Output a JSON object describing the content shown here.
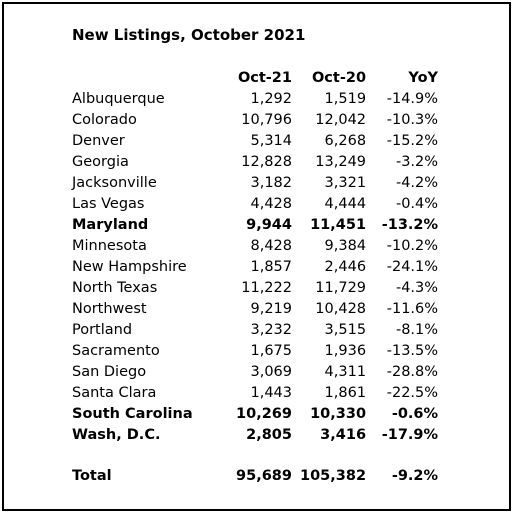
{
  "title": "New Listings, October 2021",
  "columns": {
    "region": "",
    "oct21": "Oct-21",
    "oct20": "Oct-20",
    "yoy": "YoY"
  },
  "rows": [
    {
      "region": "Albuquerque",
      "oct21": "1,292",
      "oct20": "1,519",
      "yoy": "-14.9%",
      "bold": false
    },
    {
      "region": "Colorado",
      "oct21": "10,796",
      "oct20": "12,042",
      "yoy": "-10.3%",
      "bold": false
    },
    {
      "region": "Denver",
      "oct21": "5,314",
      "oct20": "6,268",
      "yoy": "-15.2%",
      "bold": false
    },
    {
      "region": "Georgia",
      "oct21": "12,828",
      "oct20": "13,249",
      "yoy": "-3.2%",
      "bold": false
    },
    {
      "region": "Jacksonville",
      "oct21": "3,182",
      "oct20": "3,321",
      "yoy": "-4.2%",
      "bold": false
    },
    {
      "region": "Las Vegas",
      "oct21": "4,428",
      "oct20": "4,444",
      "yoy": "-0.4%",
      "bold": false
    },
    {
      "region": "Maryland",
      "oct21": "9,944",
      "oct20": "11,451",
      "yoy": "-13.2%",
      "bold": true
    },
    {
      "region": "Minnesota",
      "oct21": "8,428",
      "oct20": "9,384",
      "yoy": "-10.2%",
      "bold": false
    },
    {
      "region": "New Hampshire",
      "oct21": "1,857",
      "oct20": "2,446",
      "yoy": "-24.1%",
      "bold": false
    },
    {
      "region": "North Texas",
      "oct21": "11,222",
      "oct20": "11,729",
      "yoy": "-4.3%",
      "bold": false
    },
    {
      "region": "Northwest",
      "oct21": "9,219",
      "oct20": "10,428",
      "yoy": "-11.6%",
      "bold": false
    },
    {
      "region": "Portland",
      "oct21": "3,232",
      "oct20": "3,515",
      "yoy": "-8.1%",
      "bold": false
    },
    {
      "region": "Sacramento",
      "oct21": "1,675",
      "oct20": "1,936",
      "yoy": "-13.5%",
      "bold": false
    },
    {
      "region": "San Diego",
      "oct21": "3,069",
      "oct20": "4,311",
      "yoy": "-28.8%",
      "bold": false
    },
    {
      "region": "Santa Clara",
      "oct21": "1,443",
      "oct20": "1,861",
      "yoy": "-22.5%",
      "bold": false
    },
    {
      "region": "South Carolina",
      "oct21": "10,269",
      "oct20": "10,330",
      "yoy": "-0.6%",
      "bold": true
    },
    {
      "region": "Wash, D.C.",
      "oct21": "2,805",
      "oct20": "3,416",
      "yoy": "-17.9%",
      "bold": true
    }
  ],
  "total": {
    "region": "Total",
    "oct21": "95,689",
    "oct20": "105,382",
    "yoy": "-9.2%"
  }
}
